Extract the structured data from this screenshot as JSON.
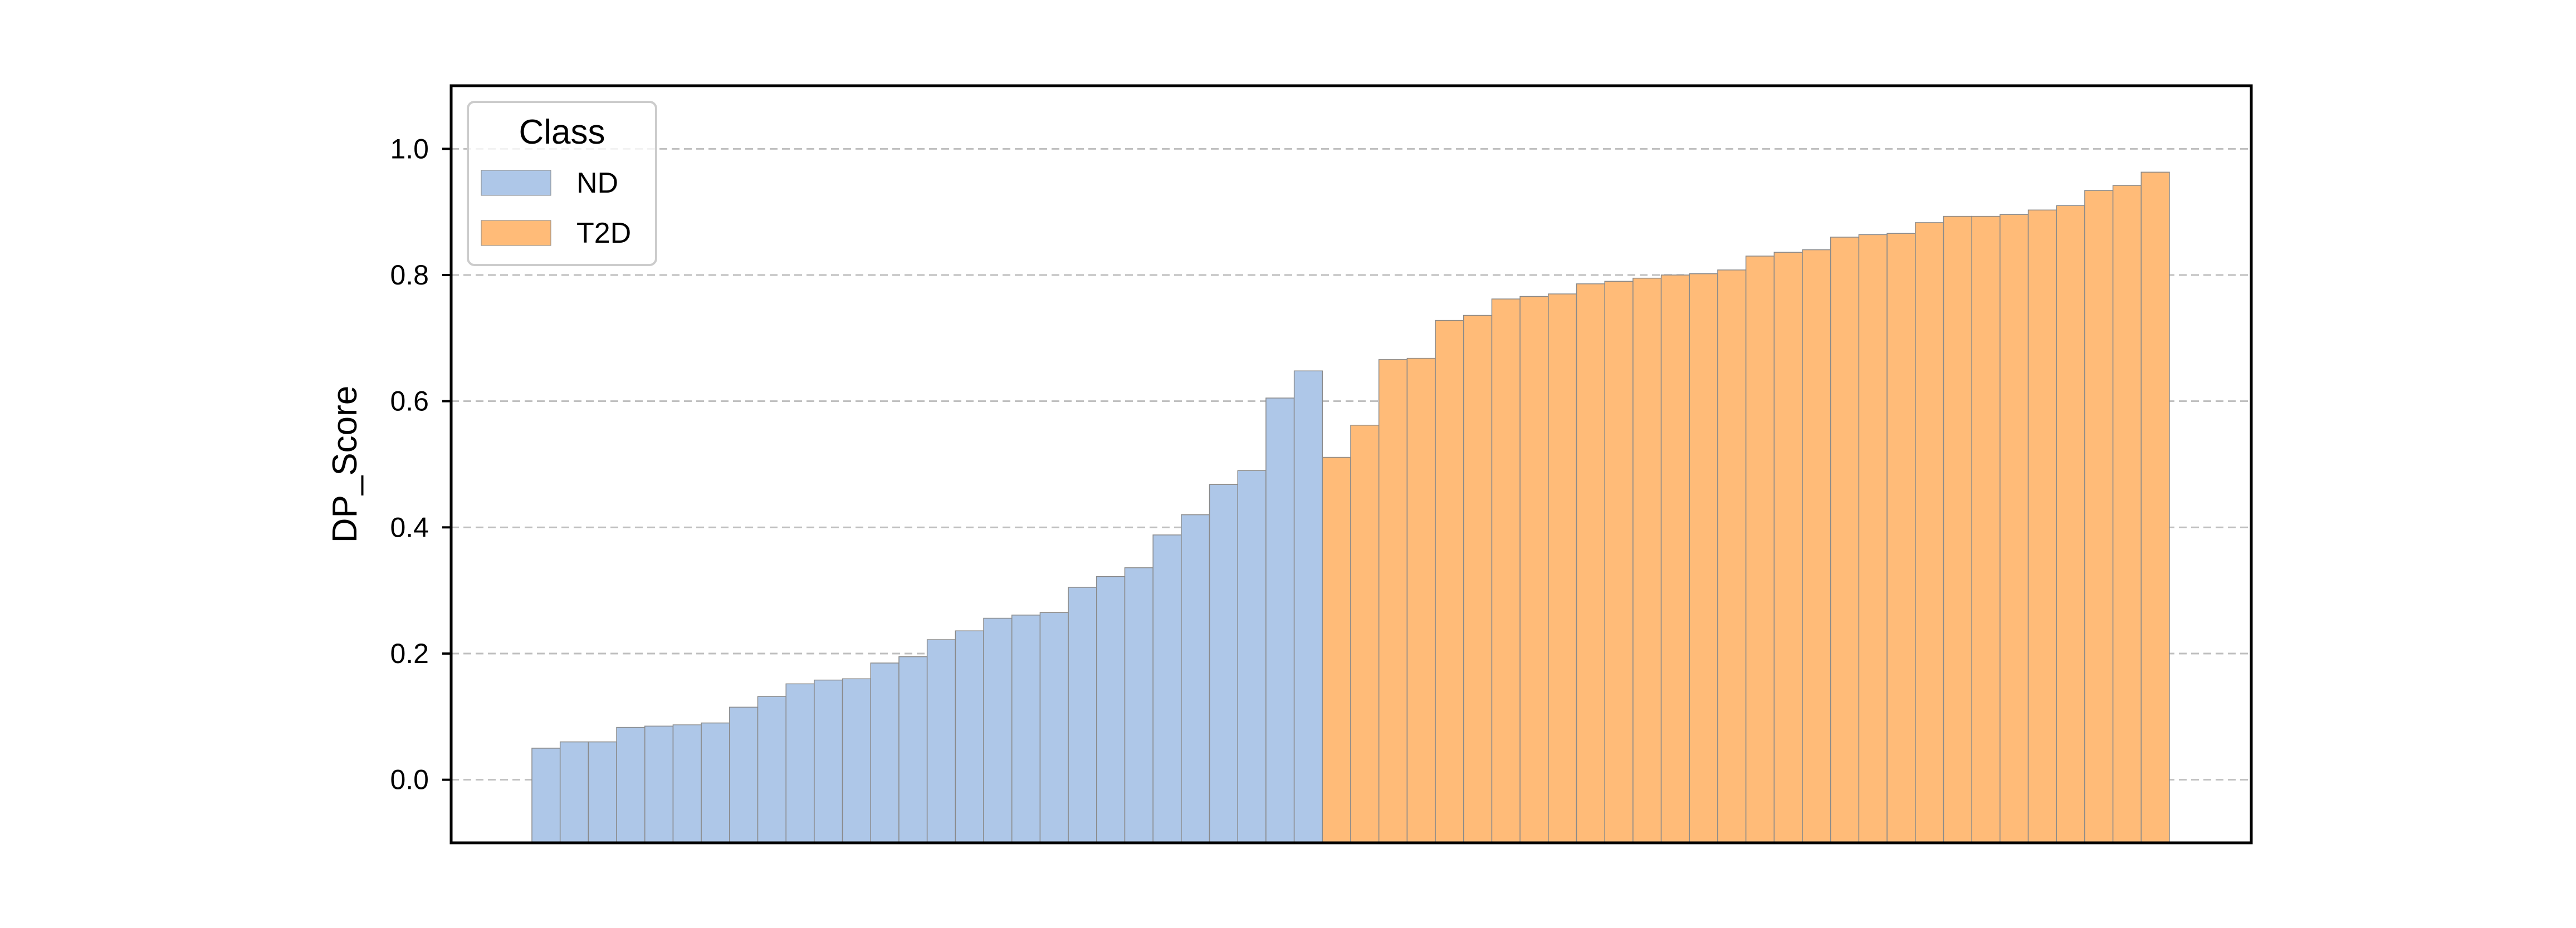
{
  "chart_data": {
    "type": "bar",
    "title": "",
    "xlabel": "",
    "ylabel": "DP_Score",
    "ylim": [
      -0.1,
      1.1
    ],
    "yticks": [
      "0.0",
      "0.2",
      "0.4",
      "0.6",
      "0.8",
      "1.0"
    ],
    "grid": "horizontal dashed",
    "legend": {
      "title": "Class",
      "placement": "top-left",
      "entries": [
        {
          "label": "ND",
          "color": "#aec7e8"
        },
        {
          "label": "T2D",
          "color": "#ffbb78"
        }
      ]
    },
    "series": [
      {
        "name": "ND",
        "color": "#aec7e8",
        "values": [
          0.05,
          0.06,
          0.06,
          0.083,
          0.085,
          0.087,
          0.09,
          0.115,
          0.132,
          0.152,
          0.158,
          0.16,
          0.185,
          0.195,
          0.222,
          0.236,
          0.256,
          0.261,
          0.265,
          0.305,
          0.322,
          0.336,
          0.388,
          0.42,
          0.468,
          0.49,
          0.605,
          0.648
        ]
      },
      {
        "name": "T2D",
        "color": "#ffbb78",
        "values": [
          0.511,
          0.562,
          0.666,
          0.668,
          0.728,
          0.736,
          0.762,
          0.766,
          0.77,
          0.786,
          0.79,
          0.795,
          0.8,
          0.802,
          0.808,
          0.83,
          0.836,
          0.84,
          0.86,
          0.864,
          0.866,
          0.883,
          0.893,
          0.893,
          0.896,
          0.903,
          0.91,
          0.934,
          0.942,
          0.963
        ]
      }
    ]
  }
}
